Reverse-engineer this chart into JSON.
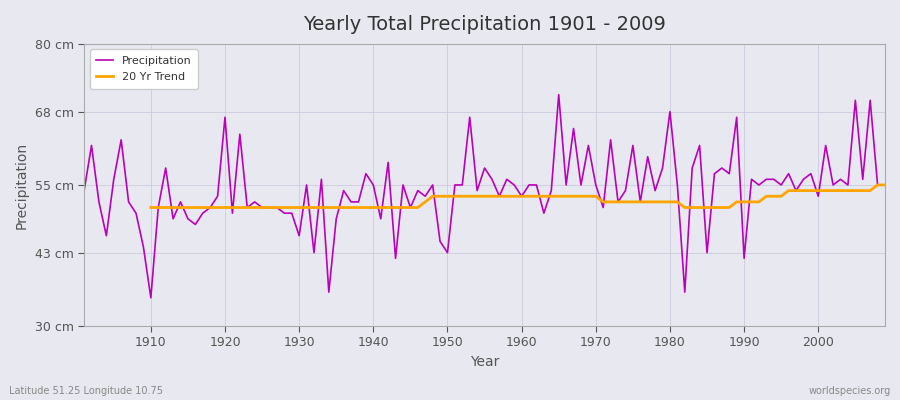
{
  "title": "Yearly Total Precipitation 1901 - 2009",
  "xlabel": "Year",
  "ylabel": "Precipitation",
  "subtitle_left": "Latitude 51.25 Longitude 10.75",
  "subtitle_right": "worldspecies.org",
  "ylim": [
    30,
    80
  ],
  "yticks": [
    30,
    43,
    55,
    68,
    80
  ],
  "ytick_labels": [
    "30 cm",
    "43 cm",
    "55 cm",
    "68 cm",
    "80 cm"
  ],
  "xlim": [
    1901,
    2009
  ],
  "xticks": [
    1910,
    1920,
    1930,
    1940,
    1950,
    1960,
    1970,
    1980,
    1990,
    2000
  ],
  "precip_color": "#bb00bb",
  "trend_color": "#ffa500",
  "bg_color": "#e8e8f0",
  "legend_labels": [
    "Precipitation",
    "20 Yr Trend"
  ],
  "years": [
    1901,
    1902,
    1903,
    1904,
    1905,
    1906,
    1907,
    1908,
    1909,
    1910,
    1911,
    1912,
    1913,
    1914,
    1915,
    1916,
    1917,
    1918,
    1919,
    1920,
    1921,
    1922,
    1923,
    1924,
    1925,
    1926,
    1927,
    1928,
    1929,
    1930,
    1931,
    1932,
    1933,
    1934,
    1935,
    1936,
    1937,
    1938,
    1939,
    1940,
    1941,
    1942,
    1943,
    1944,
    1945,
    1946,
    1947,
    1948,
    1949,
    1950,
    1951,
    1952,
    1953,
    1954,
    1955,
    1956,
    1957,
    1958,
    1959,
    1960,
    1961,
    1962,
    1963,
    1964,
    1965,
    1966,
    1967,
    1968,
    1969,
    1970,
    1971,
    1972,
    1973,
    1974,
    1975,
    1976,
    1977,
    1978,
    1979,
    1980,
    1981,
    1982,
    1983,
    1984,
    1985,
    1986,
    1987,
    1988,
    1989,
    1990,
    1991,
    1992,
    1993,
    1994,
    1995,
    1996,
    1997,
    1998,
    1999,
    2000,
    2001,
    2002,
    2003,
    2004,
    2005,
    2006,
    2007,
    2008,
    2009
  ],
  "precipitation": [
    54,
    62,
    52,
    46,
    56,
    63,
    52,
    50,
    44,
    35,
    51,
    58,
    49,
    52,
    49,
    48,
    50,
    51,
    53,
    67,
    50,
    64,
    51,
    52,
    51,
    51,
    51,
    50,
    50,
    46,
    55,
    43,
    56,
    36,
    49,
    54,
    52,
    52,
    57,
    55,
    49,
    59,
    42,
    55,
    51,
    54,
    53,
    55,
    45,
    43,
    55,
    55,
    67,
    54,
    58,
    56,
    53,
    56,
    55,
    53,
    55,
    55,
    50,
    54,
    71,
    55,
    65,
    55,
    62,
    55,
    51,
    63,
    52,
    54,
    62,
    52,
    60,
    54,
    58,
    68,
    55,
    36,
    58,
    62,
    43,
    57,
    58,
    57,
    67,
    42,
    56,
    55,
    56,
    56,
    55,
    57,
    54,
    56,
    57,
    53,
    62,
    55,
    56,
    55,
    70,
    56,
    70,
    55,
    55
  ],
  "trend": [
    null,
    null,
    null,
    null,
    null,
    null,
    null,
    null,
    null,
    51,
    51,
    51,
    51,
    51,
    51,
    51,
    51,
    51,
    51,
    51,
    51,
    51,
    51,
    51,
    51,
    51,
    51,
    51,
    51,
    51,
    51,
    51,
    51,
    51,
    51,
    51,
    51,
    51,
    51,
    51,
    51,
    51,
    51,
    51,
    51,
    51,
    52,
    53,
    53,
    53,
    53,
    53,
    53,
    53,
    53,
    53,
    53,
    53,
    53,
    53,
    53,
    53,
    53,
    53,
    53,
    53,
    53,
    53,
    53,
    53,
    52,
    52,
    52,
    52,
    52,
    52,
    52,
    52,
    52,
    52,
    52,
    51,
    51,
    51,
    51,
    51,
    51,
    51,
    52,
    52,
    52,
    52,
    53,
    53,
    53,
    54,
    54,
    54,
    54,
    54,
    54,
    54,
    54,
    54,
    54,
    54,
    54,
    55,
    55
  ]
}
